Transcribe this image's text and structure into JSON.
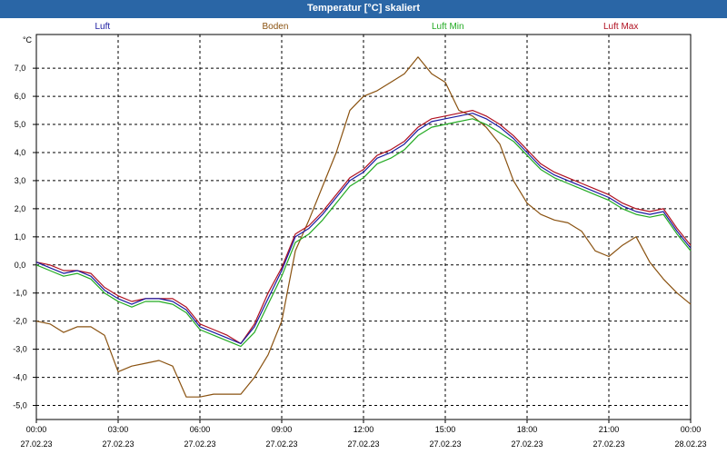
{
  "window": {
    "title": "Temperatur [°C] skaliert"
  },
  "legend": [
    {
      "label": "Luft",
      "color": "#1a1aa0"
    },
    {
      "label": "Boden",
      "color": "#8a5210"
    },
    {
      "label": "Luft Min",
      "color": "#22aa22"
    },
    {
      "label": "Luft Max",
      "color": "#b01020"
    }
  ],
  "chart_data": {
    "type": "line",
    "ylabel": "°C",
    "ylim": [
      -5.5,
      8.2
    ],
    "xlim": [
      "2023-02-27T00:00",
      "2023-02-28T00:00"
    ],
    "grid": true,
    "y_ticks": [
      "7,0",
      "6,0",
      "5,0",
      "4,0",
      "3,0",
      "2,0",
      "1,0",
      "0,0",
      "-1,0",
      "-2,0",
      "-3,0",
      "-4,0",
      "-5,0"
    ],
    "x_ticks": [
      {
        "time": "00:00",
        "date": "27.02.23"
      },
      {
        "time": "03:00",
        "date": "27.02.23"
      },
      {
        "time": "06:00",
        "date": "27.02.23"
      },
      {
        "time": "09:00",
        "date": "27.02.23"
      },
      {
        "time": "12:00",
        "date": "27.02.23"
      },
      {
        "time": "15:00",
        "date": "27.02.23"
      },
      {
        "time": "18:00",
        "date": "27.02.23"
      },
      {
        "time": "21:00",
        "date": "27.02.23"
      },
      {
        "time": "00:00",
        "date": "28.02.23"
      }
    ],
    "series": [
      {
        "name": "Luft",
        "color": "#1a1aa0",
        "x": [
          "2023-02-27T00:00",
          "2023-02-27T00:30",
          "2023-02-27T01:00",
          "2023-02-27T01:30",
          "2023-02-27T02:00",
          "2023-02-27T02:30",
          "2023-02-27T03:00",
          "2023-02-27T03:30",
          "2023-02-27T04:00",
          "2023-02-27T04:30",
          "2023-02-27T05:00",
          "2023-02-27T05:30",
          "2023-02-27T06:00",
          "2023-02-27T06:30",
          "2023-02-27T07:00",
          "2023-02-27T07:30",
          "2023-02-27T08:00",
          "2023-02-27T08:30",
          "2023-02-27T09:00",
          "2023-02-27T09:30",
          "2023-02-27T10:00",
          "2023-02-27T10:30",
          "2023-02-27T11:00",
          "2023-02-27T11:30",
          "2023-02-27T12:00",
          "2023-02-27T12:30",
          "2023-02-27T13:00",
          "2023-02-27T13:30",
          "2023-02-27T14:00",
          "2023-02-27T14:30",
          "2023-02-27T15:00",
          "2023-02-27T15:30",
          "2023-02-27T16:00",
          "2023-02-27T16:30",
          "2023-02-27T17:00",
          "2023-02-27T17:30",
          "2023-02-27T18:00",
          "2023-02-27T18:30",
          "2023-02-27T19:00",
          "2023-02-27T19:30",
          "2023-02-27T20:00",
          "2023-02-27T20:30",
          "2023-02-27T21:00",
          "2023-02-27T21:30",
          "2023-02-27T22:00",
          "2023-02-27T22:30",
          "2023-02-27T23:00",
          "2023-02-27T23:30",
          "2023-02-28T00:00"
        ],
        "y": [
          0.1,
          -0.1,
          -0.3,
          -0.2,
          -0.4,
          -0.9,
          -1.2,
          -1.4,
          -1.2,
          -1.2,
          -1.3,
          -1.6,
          -2.2,
          -2.4,
          -2.6,
          -2.8,
          -2.2,
          -1.2,
          -0.2,
          1.0,
          1.3,
          1.8,
          2.4,
          3.0,
          3.3,
          3.8,
          4.0,
          4.3,
          4.8,
          5.1,
          5.2,
          5.3,
          5.4,
          5.2,
          4.9,
          4.5,
          4.0,
          3.5,
          3.2,
          3.0,
          2.8,
          2.6,
          2.4,
          2.1,
          1.9,
          1.8,
          1.9,
          1.2,
          0.6
        ]
      },
      {
        "name": "Boden",
        "color": "#8a5210",
        "x": [
          "2023-02-27T00:00",
          "2023-02-27T00:30",
          "2023-02-27T01:00",
          "2023-02-27T01:30",
          "2023-02-27T02:00",
          "2023-02-27T02:30",
          "2023-02-27T03:00",
          "2023-02-27T03:30",
          "2023-02-27T04:00",
          "2023-02-27T04:30",
          "2023-02-27T05:00",
          "2023-02-27T05:30",
          "2023-02-27T06:00",
          "2023-02-27T06:30",
          "2023-02-27T07:00",
          "2023-02-27T07:30",
          "2023-02-27T08:00",
          "2023-02-27T08:30",
          "2023-02-27T09:00",
          "2023-02-27T09:30",
          "2023-02-27T10:00",
          "2023-02-27T10:30",
          "2023-02-27T11:00",
          "2023-02-27T11:30",
          "2023-02-27T12:00",
          "2023-02-27T12:30",
          "2023-02-27T13:00",
          "2023-02-27T13:30",
          "2023-02-27T14:00",
          "2023-02-27T14:30",
          "2023-02-27T15:00",
          "2023-02-27T15:30",
          "2023-02-27T16:00",
          "2023-02-27T16:30",
          "2023-02-27T17:00",
          "2023-02-27T17:30",
          "2023-02-27T18:00",
          "2023-02-27T18:30",
          "2023-02-27T19:00",
          "2023-02-27T19:30",
          "2023-02-27T20:00",
          "2023-02-27T20:30",
          "2023-02-27T21:00",
          "2023-02-27T21:30",
          "2023-02-27T22:00",
          "2023-02-27T22:30",
          "2023-02-27T23:00",
          "2023-02-27T23:30",
          "2023-02-28T00:00"
        ],
        "y": [
          -2.0,
          -2.1,
          -2.4,
          -2.2,
          -2.2,
          -2.5,
          -3.8,
          -3.6,
          -3.5,
          -3.4,
          -3.6,
          -4.7,
          -4.7,
          -4.6,
          -4.6,
          -4.6,
          -4.0,
          -3.2,
          -2.0,
          0.5,
          1.6,
          2.8,
          4.0,
          5.5,
          6.0,
          6.2,
          6.5,
          6.8,
          7.4,
          6.8,
          6.5,
          5.5,
          5.3,
          4.9,
          4.3,
          3.0,
          2.2,
          1.8,
          1.6,
          1.5,
          1.2,
          0.5,
          0.3,
          0.7,
          1.0,
          0.1,
          -0.5,
          -1.0,
          -1.4
        ]
      },
      {
        "name": "Luft Min",
        "color": "#22aa22",
        "x": [
          "2023-02-27T00:00",
          "2023-02-27T00:30",
          "2023-02-27T01:00",
          "2023-02-27T01:30",
          "2023-02-27T02:00",
          "2023-02-27T02:30",
          "2023-02-27T03:00",
          "2023-02-27T03:30",
          "2023-02-27T04:00",
          "2023-02-27T04:30",
          "2023-02-27T05:00",
          "2023-02-27T05:30",
          "2023-02-27T06:00",
          "2023-02-27T06:30",
          "2023-02-27T07:00",
          "2023-02-27T07:30",
          "2023-02-27T08:00",
          "2023-02-27T08:30",
          "2023-02-27T09:00",
          "2023-02-27T09:30",
          "2023-02-27T10:00",
          "2023-02-27T10:30",
          "2023-02-27T11:00",
          "2023-02-27T11:30",
          "2023-02-27T12:00",
          "2023-02-27T12:30",
          "2023-02-27T13:00",
          "2023-02-27T13:30",
          "2023-02-27T14:00",
          "2023-02-27T14:30",
          "2023-02-27T15:00",
          "2023-02-27T15:30",
          "2023-02-27T16:00",
          "2023-02-27T16:30",
          "2023-02-27T17:00",
          "2023-02-27T17:30",
          "2023-02-27T18:00",
          "2023-02-27T18:30",
          "2023-02-27T19:00",
          "2023-02-27T19:30",
          "2023-02-27T20:00",
          "2023-02-27T20:30",
          "2023-02-27T21:00",
          "2023-02-27T21:30",
          "2023-02-27T22:00",
          "2023-02-27T22:30",
          "2023-02-27T23:00",
          "2023-02-27T23:30",
          "2023-02-28T00:00"
        ],
        "y": [
          0.0,
          -0.2,
          -0.4,
          -0.3,
          -0.5,
          -1.0,
          -1.3,
          -1.5,
          -1.3,
          -1.3,
          -1.4,
          -1.7,
          -2.3,
          -2.5,
          -2.7,
          -2.9,
          -2.4,
          -1.4,
          -0.4,
          0.8,
          1.1,
          1.6,
          2.2,
          2.8,
          3.1,
          3.6,
          3.8,
          4.1,
          4.6,
          4.9,
          5.0,
          5.1,
          5.2,
          5.0,
          4.7,
          4.4,
          3.9,
          3.4,
          3.1,
          2.9,
          2.7,
          2.5,
          2.3,
          2.0,
          1.8,
          1.7,
          1.8,
          1.1,
          0.5
        ]
      },
      {
        "name": "Luft Max",
        "color": "#b01020",
        "x": [
          "2023-02-27T00:00",
          "2023-02-27T00:30",
          "2023-02-27T01:00",
          "2023-02-27T01:30",
          "2023-02-27T02:00",
          "2023-02-27T02:30",
          "2023-02-27T03:00",
          "2023-02-27T03:30",
          "2023-02-27T04:00",
          "2023-02-27T04:30",
          "2023-02-27T05:00",
          "2023-02-27T05:30",
          "2023-02-27T06:00",
          "2023-02-27T06:30",
          "2023-02-27T07:00",
          "2023-02-27T07:30",
          "2023-02-27T08:00",
          "2023-02-27T08:30",
          "2023-02-27T09:00",
          "2023-02-27T09:30",
          "2023-02-27T10:00",
          "2023-02-27T10:30",
          "2023-02-27T11:00",
          "2023-02-27T11:30",
          "2023-02-27T12:00",
          "2023-02-27T12:30",
          "2023-02-27T13:00",
          "2023-02-27T13:30",
          "2023-02-27T14:00",
          "2023-02-27T14:30",
          "2023-02-27T15:00",
          "2023-02-27T15:30",
          "2023-02-27T16:00",
          "2023-02-27T16:30",
          "2023-02-27T17:00",
          "2023-02-27T17:30",
          "2023-02-27T18:00",
          "2023-02-27T18:30",
          "2023-02-27T19:00",
          "2023-02-27T19:30",
          "2023-02-27T20:00",
          "2023-02-27T20:30",
          "2023-02-27T21:00",
          "2023-02-27T21:30",
          "2023-02-27T22:00",
          "2023-02-27T22:30",
          "2023-02-27T23:00",
          "2023-02-27T23:30",
          "2023-02-28T00:00"
        ],
        "y": [
          0.1,
          0.0,
          -0.2,
          -0.2,
          -0.3,
          -0.8,
          -1.1,
          -1.3,
          -1.2,
          -1.2,
          -1.2,
          -1.5,
          -2.1,
          -2.3,
          -2.5,
          -2.8,
          -2.1,
          -1.0,
          -0.1,
          1.1,
          1.4,
          1.9,
          2.5,
          3.1,
          3.4,
          3.9,
          4.1,
          4.4,
          4.9,
          5.2,
          5.3,
          5.4,
          5.5,
          5.3,
          5.0,
          4.6,
          4.1,
          3.6,
          3.3,
          3.1,
          2.9,
          2.7,
          2.5,
          2.2,
          2.0,
          1.9,
          2.0,
          1.3,
          0.7
        ]
      }
    ]
  }
}
